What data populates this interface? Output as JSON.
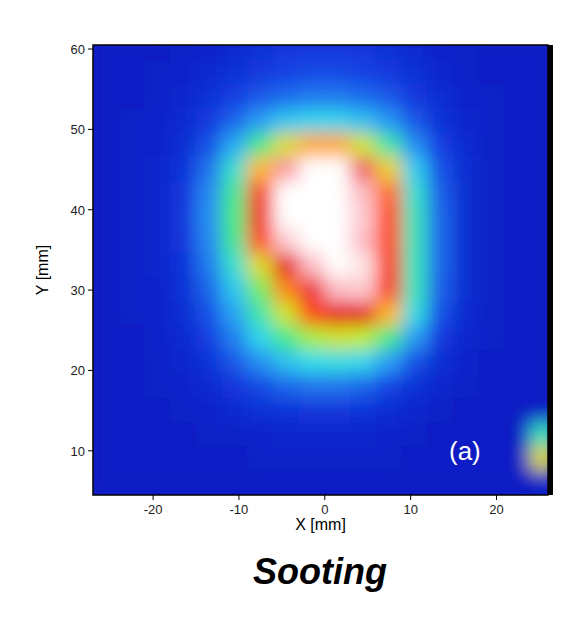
{
  "chart_data": {
    "type": "heatmap",
    "title": "Sooting",
    "x_label": "X [mm]",
    "y_label": "Y [mm]",
    "annotations": [
      "(a)"
    ],
    "x": [
      -25.5,
      -22.5,
      -19.5,
      -16.5,
      -13.5,
      -10.5,
      -7.5,
      -4.5,
      -1.5,
      1.5,
      4.5,
      7.5,
      10.5,
      13.5,
      16.5,
      19.5,
      22.5,
      25.5
    ],
    "y": [
      60,
      57,
      54,
      51,
      48,
      45,
      42,
      39,
      36,
      33,
      30,
      27,
      24,
      21,
      18,
      15,
      12,
      9,
      6
    ],
    "values": [
      [
        2,
        2,
        2,
        3,
        4,
        6,
        8,
        10,
        11,
        11,
        10,
        8,
        6,
        4,
        3,
        2,
        2,
        2
      ],
      [
        2,
        2,
        3,
        4,
        6,
        8,
        11,
        13,
        14,
        14,
        13,
        11,
        8,
        5,
        3,
        2,
        2,
        2
      ],
      [
        2,
        2,
        3,
        5,
        8,
        12,
        16,
        19,
        21,
        21,
        19,
        16,
        11,
        7,
        4,
        3,
        2,
        2
      ],
      [
        2,
        3,
        4,
        6,
        11,
        18,
        26,
        32,
        34,
        34,
        31,
        25,
        16,
        9,
        5,
        3,
        2,
        2
      ],
      [
        2,
        3,
        4,
        7,
        15,
        28,
        45,
        60,
        66,
        66,
        58,
        42,
        24,
        12,
        6,
        3,
        2,
        2
      ],
      [
        2,
        3,
        5,
        9,
        20,
        38,
        65,
        92,
        100,
        100,
        88,
        62,
        33,
        15,
        7,
        3,
        2,
        2
      ],
      [
        2,
        3,
        5,
        10,
        23,
        44,
        75,
        100,
        100,
        100,
        95,
        70,
        38,
        17,
        7,
        3,
        2,
        2
      ],
      [
        2,
        3,
        5,
        10,
        24,
        46,
        78,
        100,
        100,
        100,
        96,
        72,
        40,
        18,
        7,
        3,
        2,
        2
      ],
      [
        2,
        3,
        5,
        10,
        23,
        44,
        72,
        96,
        100,
        100,
        95,
        72,
        40,
        18,
        7,
        3,
        2,
        2
      ],
      [
        2,
        3,
        5,
        9,
        21,
        38,
        60,
        82,
        95,
        100,
        98,
        74,
        40,
        18,
        7,
        3,
        2,
        2
      ],
      [
        2,
        3,
        4,
        8,
        18,
        32,
        50,
        68,
        85,
        95,
        96,
        74,
        40,
        17,
        7,
        3,
        2,
        2
      ],
      [
        2,
        3,
        4,
        7,
        15,
        27,
        42,
        58,
        72,
        82,
        82,
        65,
        36,
        15,
        6,
        3,
        2,
        2
      ],
      [
        2,
        2,
        4,
        6,
        12,
        22,
        34,
        45,
        54,
        58,
        56,
        45,
        26,
        11,
        5,
        3,
        2,
        2
      ],
      [
        2,
        2,
        3,
        5,
        9,
        16,
        24,
        31,
        35,
        36,
        34,
        26,
        15,
        7,
        4,
        2,
        2,
        2
      ],
      [
        2,
        2,
        3,
        4,
        6,
        10,
        14,
        18,
        20,
        20,
        18,
        13,
        8,
        5,
        3,
        2,
        2,
        2
      ],
      [
        2,
        2,
        2,
        3,
        4,
        6,
        8,
        9,
        10,
        10,
        9,
        7,
        5,
        3,
        2,
        2,
        2,
        2
      ],
      [
        2,
        2,
        2,
        2,
        3,
        3,
        4,
        5,
        5,
        5,
        5,
        4,
        3,
        2,
        2,
        2,
        2,
        40
      ],
      [
        2,
        2,
        2,
        2,
        2,
        2,
        3,
        3,
        3,
        3,
        3,
        3,
        2,
        2,
        2,
        2,
        2,
        60
      ],
      [
        2,
        2,
        2,
        2,
        2,
        2,
        2,
        2,
        2,
        2,
        2,
        2,
        2,
        2,
        2,
        2,
        2,
        3
      ]
    ],
    "xlim": [
      -27,
      26
    ],
    "ylim": [
      4.5,
      60.5
    ],
    "xticks": [
      -20,
      -10,
      0,
      10,
      20
    ],
    "yticks": [
      10,
      20,
      30,
      40,
      50,
      60
    ]
  }
}
